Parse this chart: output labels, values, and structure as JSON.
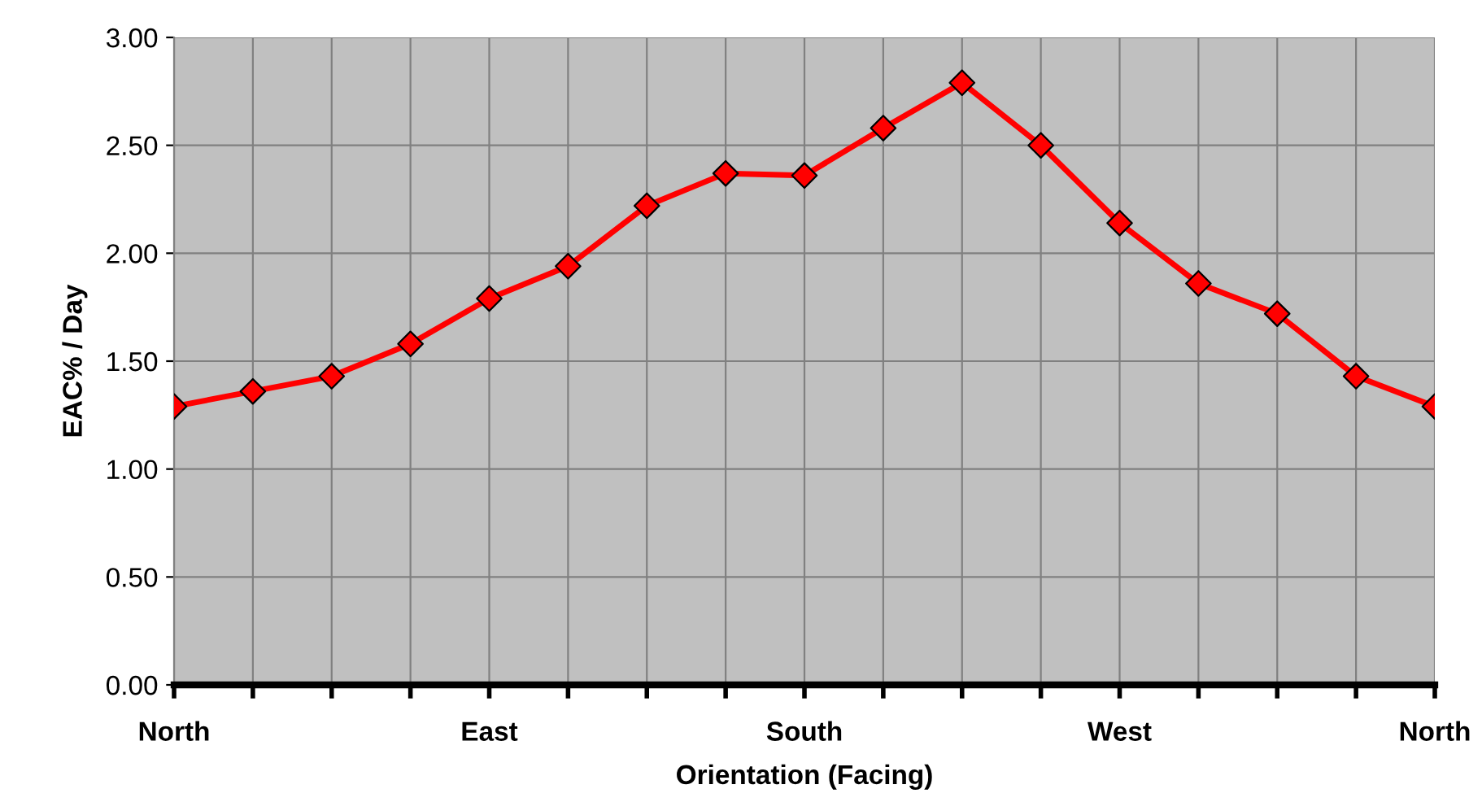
{
  "chart_data": {
    "type": "line",
    "xlabel": "Orientation (Facing)",
    "ylabel": "EAC% / Day",
    "categories": [
      "North",
      null,
      null,
      null,
      "East",
      null,
      null,
      null,
      "South",
      null,
      null,
      null,
      "West",
      null,
      null,
      null,
      "North"
    ],
    "series": [
      {
        "color": "#ff0000",
        "values": [
          1.29,
          1.36,
          1.43,
          1.58,
          1.79,
          1.94,
          2.22,
          2.37,
          2.36,
          2.58,
          2.79,
          2.5,
          2.14,
          1.86,
          1.72,
          1.43,
          1.29
        ]
      }
    ],
    "ylim": [
      0,
      3
    ],
    "yticks": [
      {
        "value": 0,
        "label": "0.00"
      },
      {
        "value": 0.5,
        "label": "0.50"
      },
      {
        "value": 1,
        "label": "1.00"
      },
      {
        "value": 1.5,
        "label": "1.50"
      },
      {
        "value": 2,
        "label": "2.00"
      },
      {
        "value": 2.5,
        "label": "2.50"
      },
      {
        "value": 3,
        "label": "3.00"
      }
    ],
    "grid": true,
    "marker": "diamond",
    "line_style": "solid"
  }
}
